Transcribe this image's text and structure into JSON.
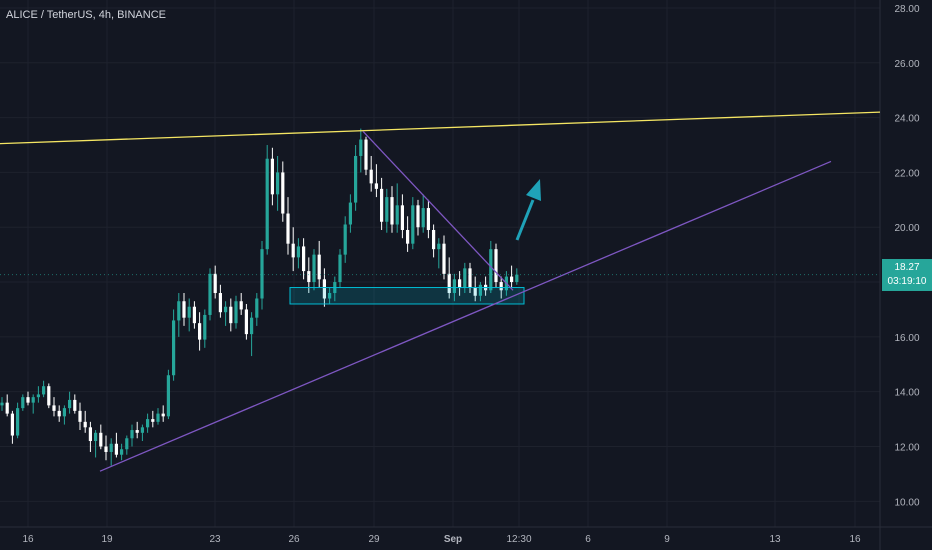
{
  "header": {
    "symbol_title": "ALICE / TetherUS, 4h, BINANCE"
  },
  "price_tag": {
    "price": "18.27",
    "countdown": "03:19:10"
  },
  "colors": {
    "background": "#131722",
    "grid": "#1e222d",
    "up_candle": "#26a69a",
    "down_candle": "#ffffff",
    "resistance_line": "#f5e663",
    "support_line": "#7e57c2",
    "zone": "#00bcd4",
    "arrow": "#1fa2b8",
    "axis_text": "#b2b5be"
  },
  "chart_data": {
    "type": "candlestick",
    "title": "ALICE / TetherUS, 4h, BINANCE",
    "y_axis": {
      "ticks": [
        "10.00",
        "12.00",
        "14.00",
        "16.00",
        "18.00",
        "20.00",
        "22.00",
        "24.00",
        "26.00",
        "28.00"
      ],
      "range": [
        9.3,
        28.2
      ]
    },
    "x_axis": {
      "ticks": [
        "16",
        "19",
        "23",
        "26",
        "29",
        "Sep",
        "12:30",
        "6",
        "9",
        "13",
        "16"
      ]
    },
    "last_price": 18.27,
    "candles": [
      [
        13.5,
        13.8,
        13.3,
        13.6
      ],
      [
        13.6,
        13.9,
        13.1,
        13.2
      ],
      [
        13.2,
        13.3,
        12.1,
        12.4
      ],
      [
        12.4,
        13.6,
        12.3,
        13.4
      ],
      [
        13.4,
        13.9,
        13.3,
        13.8
      ],
      [
        13.8,
        14.0,
        13.5,
        13.6
      ],
      [
        13.6,
        13.9,
        13.2,
        13.8
      ],
      [
        13.8,
        14.2,
        13.6,
        13.9
      ],
      [
        13.9,
        14.4,
        13.8,
        14.2
      ],
      [
        14.2,
        14.3,
        13.4,
        13.5
      ],
      [
        13.5,
        13.8,
        13.1,
        13.3
      ],
      [
        13.3,
        13.5,
        12.9,
        13.1
      ],
      [
        13.1,
        13.5,
        12.8,
        13.4
      ],
      [
        13.4,
        14.0,
        13.2,
        13.7
      ],
      [
        13.7,
        13.9,
        13.2,
        13.3
      ],
      [
        13.3,
        13.6,
        12.6,
        12.9
      ],
      [
        12.9,
        13.3,
        12.5,
        12.7
      ],
      [
        12.7,
        12.9,
        11.8,
        12.2
      ],
      [
        12.2,
        12.6,
        11.6,
        12.5
      ],
      [
        12.5,
        12.8,
        11.9,
        12.0
      ],
      [
        12.0,
        12.4,
        11.5,
        11.8
      ],
      [
        11.8,
        12.3,
        11.3,
        12.1
      ],
      [
        12.1,
        12.5,
        11.6,
        11.7
      ],
      [
        11.7,
        12.1,
        11.5,
        11.9
      ],
      [
        11.9,
        12.4,
        11.7,
        12.3
      ],
      [
        12.3,
        12.8,
        12.0,
        12.6
      ],
      [
        12.6,
        12.9,
        12.3,
        12.5
      ],
      [
        12.5,
        12.8,
        12.2,
        12.7
      ],
      [
        12.7,
        13.2,
        12.5,
        13.0
      ],
      [
        13.0,
        13.3,
        12.7,
        12.9
      ],
      [
        12.9,
        13.4,
        12.8,
        13.2
      ],
      [
        13.2,
        13.5,
        12.9,
        13.1
      ],
      [
        13.1,
        14.8,
        13.0,
        14.6
      ],
      [
        14.6,
        17.0,
        14.4,
        16.6
      ],
      [
        16.6,
        17.6,
        16.0,
        17.3
      ],
      [
        17.3,
        17.6,
        16.4,
        16.7
      ],
      [
        16.7,
        17.4,
        16.2,
        17.1
      ],
      [
        17.1,
        17.3,
        16.3,
        16.5
      ],
      [
        16.5,
        16.9,
        15.5,
        15.9
      ],
      [
        15.9,
        17.0,
        15.6,
        16.8
      ],
      [
        16.8,
        18.5,
        16.6,
        18.3
      ],
      [
        18.3,
        18.6,
        17.4,
        17.6
      ],
      [
        17.6,
        17.9,
        16.7,
        16.9
      ],
      [
        16.9,
        17.3,
        16.4,
        17.1
      ],
      [
        17.1,
        17.4,
        16.2,
        16.5
      ],
      [
        16.5,
        17.5,
        16.3,
        17.3
      ],
      [
        17.3,
        17.6,
        16.8,
        17.0
      ],
      [
        17.0,
        17.2,
        15.9,
        16.1
      ],
      [
        16.1,
        16.9,
        15.3,
        16.7
      ],
      [
        16.7,
        17.6,
        16.4,
        17.4
      ],
      [
        17.4,
        19.5,
        17.0,
        19.2
      ],
      [
        19.2,
        23.0,
        19.0,
        22.5
      ],
      [
        22.5,
        22.9,
        20.8,
        21.2
      ],
      [
        21.2,
        22.6,
        20.6,
        22.0
      ],
      [
        22.0,
        22.4,
        20.2,
        20.5
      ],
      [
        20.5,
        21.1,
        19.0,
        19.4
      ],
      [
        19.4,
        20.0,
        18.4,
        18.9
      ],
      [
        18.9,
        19.6,
        18.5,
        19.3
      ],
      [
        19.3,
        19.6,
        18.1,
        18.4
      ],
      [
        18.4,
        18.9,
        17.6,
        18.0
      ],
      [
        18.0,
        19.2,
        17.7,
        19.0
      ],
      [
        19.0,
        19.5,
        17.8,
        18.1
      ],
      [
        18.1,
        18.5,
        17.1,
        17.4
      ],
      [
        17.4,
        17.8,
        17.2,
        17.6
      ],
      [
        17.6,
        18.2,
        17.3,
        18.0
      ],
      [
        18.0,
        19.2,
        17.8,
        19.0
      ],
      [
        19.0,
        20.4,
        18.7,
        20.1
      ],
      [
        20.1,
        21.2,
        19.8,
        20.9
      ],
      [
        20.9,
        23.0,
        20.6,
        22.6
      ],
      [
        22.6,
        23.6,
        22.0,
        23.2
      ],
      [
        23.2,
        23.3,
        21.9,
        22.1
      ],
      [
        22.1,
        22.6,
        21.3,
        21.6
      ],
      [
        21.6,
        22.3,
        21.1,
        21.4
      ],
      [
        21.4,
        21.8,
        19.9,
        20.2
      ],
      [
        20.2,
        21.4,
        19.8,
        21.1
      ],
      [
        21.1,
        21.5,
        19.8,
        20.1
      ],
      [
        20.1,
        21.6,
        19.8,
        20.8
      ],
      [
        20.8,
        21.2,
        19.6,
        19.9
      ],
      [
        19.9,
        20.4,
        19.1,
        19.4
      ],
      [
        19.4,
        21.1,
        19.2,
        20.8
      ],
      [
        20.8,
        21.0,
        19.7,
        20.0
      ],
      [
        20.0,
        21.2,
        19.8,
        20.7
      ],
      [
        20.7,
        21.0,
        19.6,
        19.9
      ],
      [
        19.9,
        20.1,
        18.9,
        19.2
      ],
      [
        19.2,
        19.6,
        18.5,
        19.4
      ],
      [
        19.4,
        19.7,
        18.1,
        18.3
      ],
      [
        18.3,
        18.9,
        17.4,
        17.6
      ],
      [
        17.6,
        18.3,
        17.3,
        18.1
      ],
      [
        18.1,
        18.4,
        17.5,
        17.8
      ],
      [
        17.8,
        18.7,
        17.6,
        18.5
      ],
      [
        18.5,
        18.7,
        17.6,
        17.8
      ],
      [
        17.8,
        18.2,
        17.3,
        17.5
      ],
      [
        17.5,
        18.0,
        17.3,
        17.9
      ],
      [
        17.9,
        18.2,
        17.5,
        17.7
      ],
      [
        17.7,
        19.5,
        17.6,
        19.2
      ],
      [
        19.2,
        19.4,
        17.8,
        18.0
      ],
      [
        18.0,
        18.2,
        17.4,
        17.7
      ],
      [
        17.7,
        18.4,
        17.5,
        18.2
      ],
      [
        18.2,
        18.6,
        17.8,
        18.0
      ],
      [
        18.0,
        18.5,
        17.9,
        18.27
      ]
    ],
    "trendlines": [
      {
        "name": "resistance",
        "start": [
          "16",
          23.05
        ],
        "end": [
          "16",
          24.2
        ]
      },
      {
        "name": "support",
        "start": [
          "19",
          11.1
        ],
        "end": [
          "13",
          22.4
        ]
      },
      {
        "name": "descending",
        "start": [
          "29",
          23.5
        ],
        "end": [
          "12:30",
          17.7
        ]
      }
    ],
    "zone": {
      "price_range": [
        17.2,
        17.8
      ]
    },
    "arrow": {
      "direction": "up"
    }
  }
}
